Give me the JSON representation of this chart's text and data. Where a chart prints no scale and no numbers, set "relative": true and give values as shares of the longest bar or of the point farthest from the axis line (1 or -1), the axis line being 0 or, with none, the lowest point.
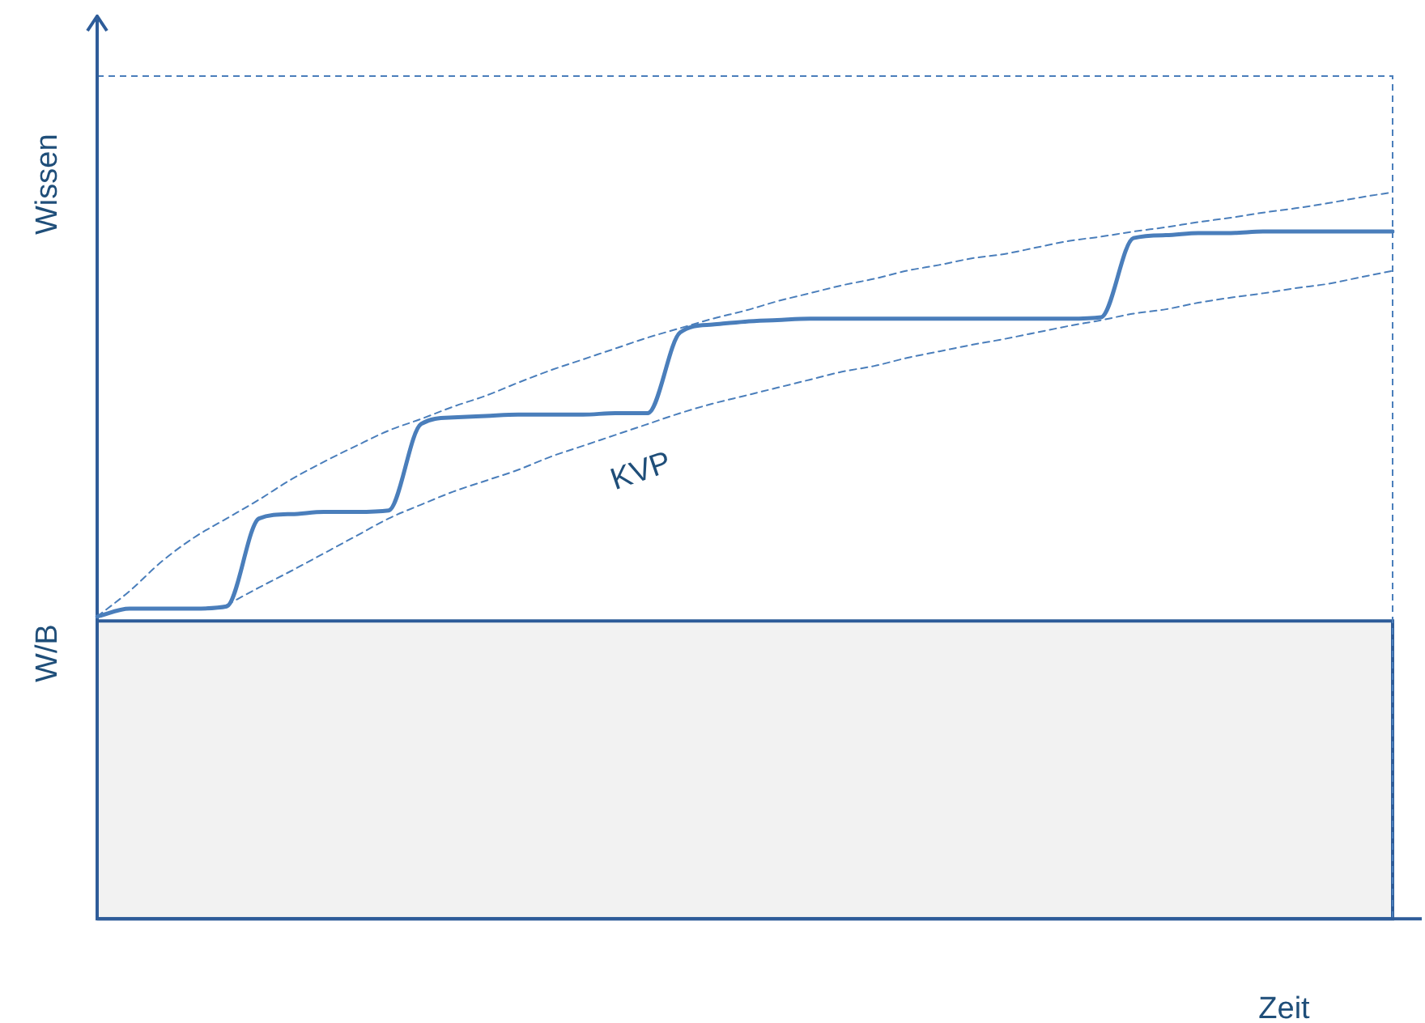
{
  "chart_data": {
    "type": "line",
    "relative": true,
    "ylabel": "Wissen",
    "xlabel": "Zeit",
    "annotations": [
      "KVP"
    ],
    "legend": false,
    "grid": false,
    "marker": "none",
    "categories": [
      null,
      null,
      null,
      null,
      null,
      null,
      null,
      null,
      null,
      null,
      null,
      null,
      null,
      null,
      null,
      null,
      null,
      null,
      null,
      null,
      null,
      null,
      null,
      null,
      null,
      null,
      null,
      null,
      null,
      null,
      null,
      null,
      null,
      null,
      null,
      null,
      null,
      null,
      null,
      null,
      null
    ],
    "series": [
      {
        "color": "#4a7ebb",
        "line_style": "solid",
        "values": [
          0.416,
          0.427,
          0.427,
          0.427,
          0.43,
          0.551,
          0.557,
          0.56,
          0.56,
          0.562,
          0.681,
          0.69,
          0.692,
          0.694,
          0.694,
          0.694,
          0.696,
          0.696,
          0.807,
          0.818,
          0.822,
          0.824,
          0.826,
          0.826,
          0.826,
          0.826,
          0.826,
          0.826,
          0.826,
          0.826,
          0.826,
          0.828,
          0.937,
          0.941,
          0.944,
          0.944,
          0.946,
          0.946,
          0.946,
          0.946,
          0.946
        ]
      },
      {
        "color": "#4a7ebb",
        "line_style": "dashed",
        "values": [
          0.416,
          0.451,
          0.492,
          0.525,
          0.551,
          0.577,
          0.605,
          0.629,
          0.651,
          0.672,
          0.688,
          0.705,
          0.72,
          0.738,
          0.755,
          0.77,
          0.785,
          0.8,
          0.813,
          0.826,
          0.837,
          0.85,
          0.861,
          0.872,
          0.881,
          0.892,
          0.9,
          0.909,
          0.915,
          0.924,
          0.933,
          0.939,
          0.946,
          0.952,
          0.959,
          0.965,
          0.972,
          0.978,
          0.985,
          0.993,
          1
        ]
      },
      {
        "color": "#4a7ebb",
        "line_style": "dashed",
        "values": [
          null,
          null,
          null,
          null,
          0.432,
          0.456,
          0.479,
          0.503,
          0.527,
          0.551,
          0.57,
          0.588,
          0.603,
          0.618,
          0.636,
          0.651,
          0.666,
          0.681,
          0.696,
          0.709,
          0.72,
          0.731,
          0.742,
          0.753,
          0.761,
          0.772,
          0.781,
          0.79,
          0.798,
          0.807,
          0.816,
          0.824,
          0.833,
          0.839,
          0.848,
          0.855,
          0.861,
          0.868,
          0.874,
          0.883,
          0.892
        ]
      }
    ],
    "bands": [
      {
        "axis": "y",
        "from": 0,
        "to": 0.41,
        "label": "W/B",
        "color": "#f2f2f2"
      }
    ],
    "ref_lines": [
      {
        "axis": "y",
        "value": 1.16,
        "line_style": "dashed",
        "color": "#4a7ebb"
      }
    ]
  }
}
